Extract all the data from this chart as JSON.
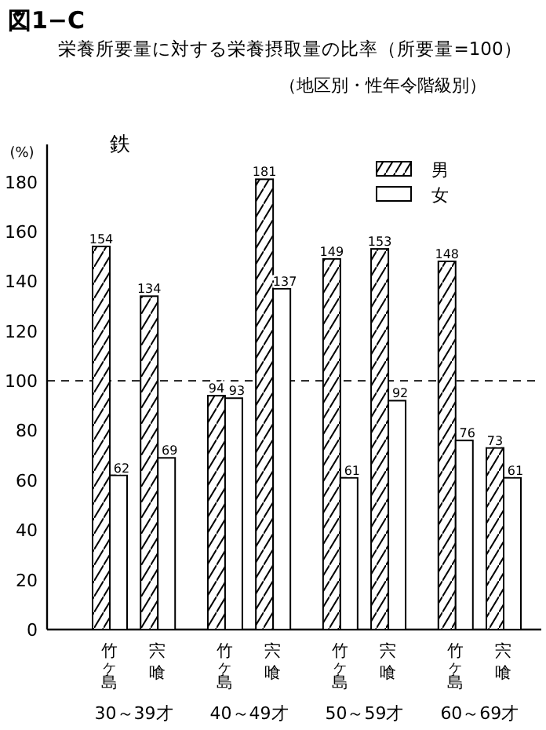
{
  "chart_data": {
    "type": "bar",
    "title": "栄養所要量に対する栄養摂取量の比率（所要量=100）",
    "subtitle": "（地区別・性年令階級別）",
    "ylabel": "(%)",
    "annotations": [
      "図1−C",
      "鉄",
      "30～39才",
      "40～49才",
      "50～59才",
      "60～69才"
    ],
    "categories": [
      "竹ヶ島",
      "宍喰",
      "竹ヶ島",
      "宍喰",
      "竹ヶ島",
      "宍喰",
      "竹ヶ島",
      "宍喰"
    ],
    "series": [
      {
        "name": "男",
        "color": "#000000",
        "values": [
          154,
          134,
          94,
          181,
          149,
          153,
          148,
          73
        ]
      },
      {
        "name": "女",
        "color": "#ffffff",
        "values": [
          62,
          69,
          93,
          137,
          61,
          92,
          76,
          61
        ]
      }
    ],
    "ylim": [
      0,
      195
    ],
    "yticks": [
      0,
      20,
      40,
      60,
      80,
      100,
      120,
      140,
      160,
      180
    ],
    "ref_lines": [
      {
        "axis": "y",
        "value": 100,
        "line_style": "dashed"
      }
    ],
    "data_labels": true,
    "legend": "top right",
    "grid": false
  }
}
